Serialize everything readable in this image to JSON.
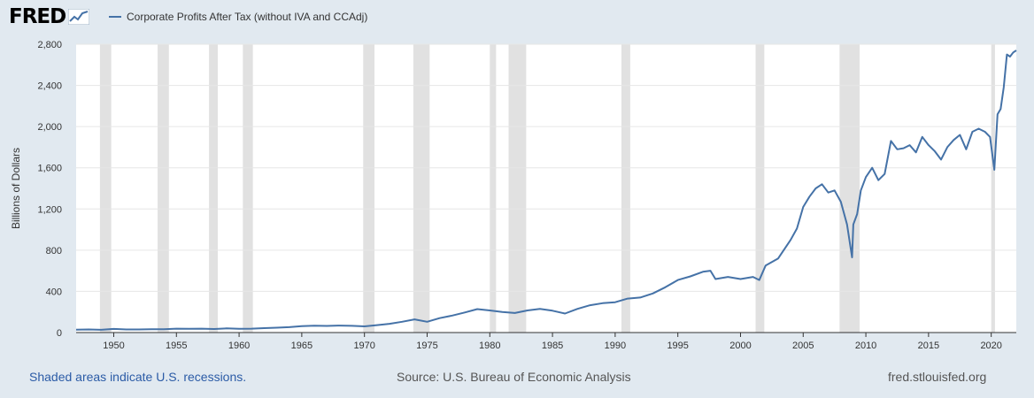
{
  "header": {
    "logo_text": "FRED",
    "legend_label": "Corporate Profits After Tax (without IVA and CCAdj)"
  },
  "footer": {
    "recession_note": "Shaded areas indicate U.S. recessions.",
    "source": "Source: U.S. Bureau of Economic Analysis",
    "site": "fred.stlouisfed.org"
  },
  "colors": {
    "series": "#4572a7",
    "recession": "#e1e1e1",
    "background": "#e1e9f0",
    "plot": "#ffffff",
    "grid": "#e6e6e6"
  },
  "chart_data": {
    "type": "line",
    "title": "",
    "xlabel": "",
    "ylabel": "Billions of Dollars",
    "xlim": [
      1947.0,
      2022.0
    ],
    "ylim": [
      0,
      2800
    ],
    "yticks": [
      0,
      400,
      800,
      1200,
      1600,
      2000,
      2400,
      2800
    ],
    "ytick_labels": [
      "0",
      "400",
      "800",
      "1,200",
      "1,600",
      "2,000",
      "2,400",
      "2,800"
    ],
    "xticks": [
      1950,
      1955,
      1960,
      1965,
      1970,
      1975,
      1980,
      1985,
      1990,
      1995,
      2000,
      2005,
      2010,
      2015,
      2020
    ],
    "grid": true,
    "legend": "top-left",
    "recessions": [
      [
        1948.9,
        1949.8
      ],
      [
        1953.5,
        1954.4
      ],
      [
        1957.6,
        1958.3
      ],
      [
        1960.3,
        1961.1
      ],
      [
        1969.9,
        1970.8
      ],
      [
        1973.9,
        1975.2
      ],
      [
        1980.0,
        1980.5
      ],
      [
        1981.5,
        1982.9
      ],
      [
        1990.5,
        1991.2
      ],
      [
        2001.2,
        2001.9
      ],
      [
        2007.9,
        2009.5
      ],
      [
        2020.0,
        2020.3
      ]
    ],
    "series": [
      {
        "x": [
          1947.0,
          1948.0,
          1949.0,
          1950.0,
          1951.0,
          1952.0,
          1953.0,
          1954.0,
          1955.0,
          1956.0,
          1957.0,
          1958.0,
          1959.0,
          1960.0,
          1961.0,
          1962.0,
          1963.0,
          1964.0,
          1965.0,
          1966.0,
          1967.0,
          1968.0,
          1969.0,
          1970.0,
          1971.0,
          1972.0,
          1973.0,
          1974.0,
          1975.0,
          1976.0,
          1977.0,
          1978.0,
          1979.0,
          1980.0,
          1981.0,
          1982.0,
          1983.0,
          1984.0,
          1985.0,
          1986.0,
          1987.0,
          1988.0,
          1989.0,
          1990.0,
          1991.0,
          1992.0,
          1993.0,
          1994.0,
          1995.0,
          1996.0,
          1997.0,
          1997.6,
          1998.0,
          1999.0,
          2000.0,
          2001.0,
          2001.5,
          2002.0,
          2003.0,
          2004.0,
          2004.5,
          2005.0,
          2005.5,
          2006.0,
          2006.5,
          2007.0,
          2007.5,
          2008.0,
          2008.5,
          2008.9,
          2009.0,
          2009.3,
          2009.6,
          2010.0,
          2010.5,
          2011.0,
          2011.5,
          2012.0,
          2012.5,
          2013.0,
          2013.5,
          2014.0,
          2014.5,
          2015.0,
          2015.5,
          2016.0,
          2016.5,
          2017.0,
          2017.5,
          2018.0,
          2018.5,
          2019.0,
          2019.5,
          2019.9,
          2020.25,
          2020.5,
          2020.75,
          2021.0,
          2021.25,
          2021.5,
          2021.75,
          2022.0
        ],
        "values": [
          28,
          30,
          27,
          35,
          30,
          30,
          32,
          33,
          38,
          37,
          38,
          34,
          40,
          37,
          38,
          43,
          47,
          52,
          62,
          66,
          64,
          68,
          65,
          60,
          72,
          85,
          105,
          128,
          105,
          140,
          165,
          195,
          228,
          215,
          200,
          190,
          215,
          230,
          212,
          185,
          230,
          265,
          285,
          295,
          330,
          340,
          380,
          440,
          510,
          545,
          590,
          600,
          520,
          540,
          520,
          540,
          510,
          650,
          720,
          900,
          1010,
          1220,
          1320,
          1400,
          1440,
          1360,
          1380,
          1270,
          1050,
          730,
          1050,
          1150,
          1380,
          1510,
          1600,
          1480,
          1540,
          1860,
          1780,
          1790,
          1820,
          1750,
          1900,
          1820,
          1760,
          1680,
          1800,
          1870,
          1920,
          1780,
          1950,
          1980,
          1950,
          1900,
          1580,
          2120,
          2170,
          2380,
          2700,
          2680,
          2720,
          2740
        ]
      }
    ]
  }
}
